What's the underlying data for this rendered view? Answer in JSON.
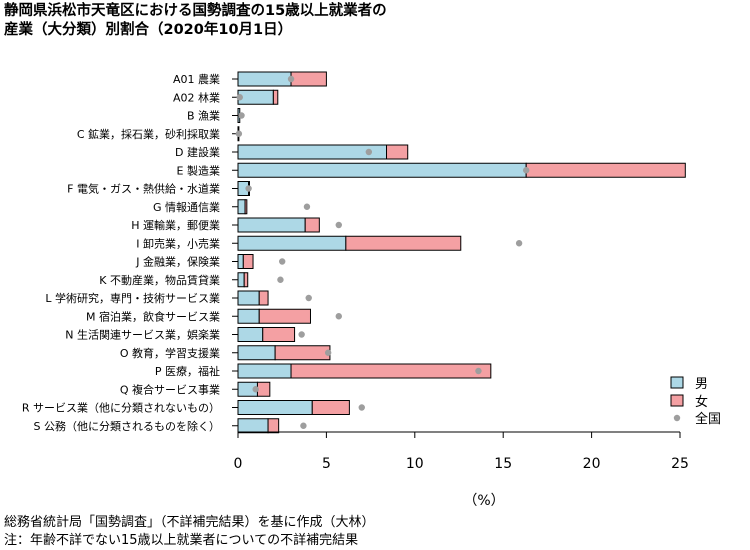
{
  "header": {
    "title_line1": "静岡県浜松市天竜区における国勢調査の15歳以上就業者の",
    "title_line2": "産業（大分類）別割合（2020年10月1日）"
  },
  "footer": {
    "source": "総務省統計局「国勢調査」（不詳補完結果）を基に作成（大林）",
    "note": "注：年齢不詳でない15歳以上就業者についての不詳補完結果"
  },
  "chart_data": {
    "type": "bar",
    "orientation": "horizontal",
    "stacked": true,
    "categories": [
      "A01 農業",
      "A02 林業",
      "B 漁業",
      "C 鉱業，採石業，砂利採取業",
      "D 建設業",
      "E 製造業",
      "F 電気・ガス・熱供給・水道業",
      "G 情報通信業",
      "H 運輸業，郵便業",
      "I 卸売業，小売業",
      "J 金融業，保険業",
      "K 不動産業，物品賃貸業",
      "L 学術研究，専門・技術サービス業",
      "M 宿泊業，飲食サービス業",
      "N 生活関連サービス業，娯楽業",
      "O 教育，学習支援業",
      "P 医療，福祉",
      "Q 複合サービス事業",
      "R サービス業（他に分類されないもの）",
      "S 公務（他に分類されるものを除く）"
    ],
    "series": [
      {
        "name": "男",
        "color": "#add8e6",
        "values": [
          3.0,
          2.0,
          0.1,
          0.05,
          8.4,
          16.3,
          0.6,
          0.4,
          3.8,
          6.1,
          0.3,
          0.35,
          1.2,
          1.2,
          1.4,
          2.1,
          3.0,
          1.1,
          4.2,
          1.7
        ]
      },
      {
        "name": "女",
        "color": "#f4a0a3",
        "values": [
          2.0,
          0.25,
          0.0,
          0.0,
          1.2,
          9.0,
          0.05,
          0.1,
          0.8,
          6.5,
          0.55,
          0.2,
          0.5,
          2.9,
          1.8,
          3.1,
          11.3,
          0.7,
          2.1,
          0.6
        ]
      }
    ],
    "national": {
      "name": "全国",
      "color": "#9e9e9e",
      "values": [
        3.0,
        0.1,
        0.2,
        0.05,
        7.4,
        16.3,
        0.6,
        3.9,
        5.7,
        15.9,
        2.5,
        2.4,
        4.0,
        5.7,
        3.6,
        5.1,
        13.6,
        1.0,
        7.0,
        3.7
      ]
    },
    "xlim": [
      0,
      25
    ],
    "xticks": [
      "0",
      "5",
      "10",
      "15",
      "20",
      "25"
    ],
    "xlabel": "（%）",
    "legend_position": "right-bottom"
  }
}
